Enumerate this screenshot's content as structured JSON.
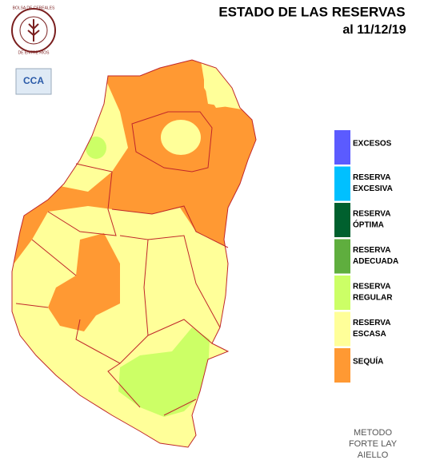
{
  "header": {
    "title": "ESTADO DE LAS RESERVAS",
    "date": "al 11/12/19"
  },
  "logos": {
    "bolsa": [
      "BOLSA DE CEREALES",
      "DE ENTRE RIOS"
    ],
    "cca": "CCA"
  },
  "legend": [
    {
      "label": [
        "EXCESOS"
      ],
      "color": "#5b5bff"
    },
    {
      "label": [
        "RESERVA",
        "EXCESIVA"
      ],
      "color": "#00c0ff"
    },
    {
      "label": [
        "RESERVA",
        "ÓPTIMA"
      ],
      "color": "#00602e"
    },
    {
      "label": [
        "RESERVA",
        "ADECUADA"
      ],
      "color": "#5fae3e"
    },
    {
      "label": [
        "RESERVA",
        "REGULAR"
      ],
      "color": "#ccff66"
    },
    {
      "label": [
        "RESERVA",
        "ESCASA"
      ],
      "color": "#ffff99"
    },
    {
      "label": [
        "SEQUÍA"
      ],
      "color": "#ff9933"
    }
  ],
  "footer": [
    "METODO",
    "FORTE LAY",
    "AIELLO"
  ]
}
